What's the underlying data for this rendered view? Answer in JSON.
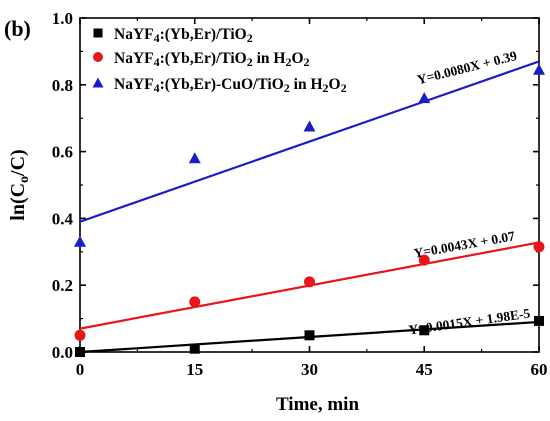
{
  "chart_data": {
    "type": "scatter",
    "panel_label": "(b)",
    "xlabel_parts": {
      "text": "Time, min"
    },
    "ylabel_parts": {
      "pre": "ln(C",
      "sub": "o",
      "post": "/C)"
    },
    "xlim": [
      0,
      60
    ],
    "ylim": [
      0,
      1.0
    ],
    "x_ticks": [
      0,
      15,
      30,
      45,
      60
    ],
    "x_tick_labels": [
      "0",
      "15",
      "30",
      "45",
      "60"
    ],
    "y_ticks": [
      0.0,
      0.2,
      0.4,
      0.6,
      0.8,
      1.0
    ],
    "y_tick_labels": [
      "0.0",
      "0.2",
      "0.4",
      "0.6",
      "0.8",
      "1.0"
    ],
    "grid": false,
    "legend_position": "top-left",
    "x": [
      0,
      15,
      30,
      45,
      60
    ],
    "series": [
      {
        "name": "NaYF4:(Yb,Er)/TiO2",
        "legend_parts": [
          [
            "NaYF",
            ""
          ],
          [
            "4",
            "sub"
          ],
          [
            ":(Yb,Er)/TiO",
            ""
          ],
          [
            "2",
            "sub"
          ]
        ],
        "marker": "square",
        "color": "#000000",
        "values": [
          0.0,
          0.01,
          0.05,
          0.065,
          0.093
        ],
        "fit": {
          "slope": 0.0015,
          "intercept": 1.98e-05
        },
        "equation": "Y=0.0015X + 1.98E-5"
      },
      {
        "name": "NaYF4:(Yb,Er)/TiO2 in H2O2",
        "legend_parts": [
          [
            "NaYF",
            ""
          ],
          [
            "4",
            "sub"
          ],
          [
            ":(Yb,Er)/TiO",
            ""
          ],
          [
            "2",
            "sub"
          ],
          [
            " in H",
            ""
          ],
          [
            "2",
            "sub"
          ],
          [
            "O",
            ""
          ],
          [
            "2",
            "sub"
          ]
        ],
        "marker": "circle",
        "color": "#e8161b",
        "values": [
          0.05,
          0.15,
          0.21,
          0.275,
          0.315
        ],
        "fit": {
          "slope": 0.0043,
          "intercept": 0.07
        },
        "equation": "Y=0.0043X + 0.07"
      },
      {
        "name": "NaYF4:(Yb,Er)-CuO/TiO2 in H2O2",
        "legend_parts": [
          [
            "NaYF",
            ""
          ],
          [
            "4",
            "sub"
          ],
          [
            ":(Yb,Er)-CuO/TiO",
            ""
          ],
          [
            "2",
            "sub"
          ],
          [
            " in H",
            ""
          ],
          [
            "2",
            "sub"
          ],
          [
            "O",
            ""
          ],
          [
            "2",
            "sub"
          ]
        ],
        "marker": "triangle",
        "color": "#1c1cc8",
        "values": [
          0.33,
          0.58,
          0.675,
          0.76,
          0.845
        ],
        "fit": {
          "slope": 0.008,
          "intercept": 0.39
        },
        "equation": "Y=0.0080X + 0.39"
      }
    ]
  }
}
